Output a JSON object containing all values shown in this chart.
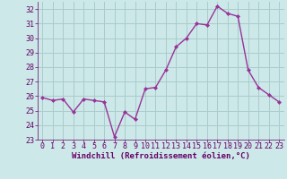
{
  "x": [
    0,
    1,
    2,
    3,
    4,
    5,
    6,
    7,
    8,
    9,
    10,
    11,
    12,
    13,
    14,
    15,
    16,
    17,
    18,
    19,
    20,
    21,
    22,
    23
  ],
  "y": [
    25.9,
    25.7,
    25.8,
    24.9,
    25.8,
    25.7,
    25.6,
    23.2,
    24.9,
    24.4,
    26.5,
    26.6,
    27.8,
    29.4,
    30.0,
    31.0,
    30.9,
    32.2,
    31.7,
    31.5,
    27.8,
    26.6,
    26.1,
    25.6
  ],
  "line_color": "#993399",
  "marker": "D",
  "marker_size": 2.0,
  "bg_color": "#cce8e8",
  "grid_color": "#aacccc",
  "xlabel": "Windchill (Refroidissement éolien,°C)",
  "xlabel_color": "#660066",
  "tick_color": "#660066",
  "ylim": [
    23,
    32.5
  ],
  "xlim": [
    -0.5,
    23.5
  ],
  "yticks": [
    23,
    24,
    25,
    26,
    27,
    28,
    29,
    30,
    31,
    32
  ],
  "xticks": [
    0,
    1,
    2,
    3,
    4,
    5,
    6,
    7,
    8,
    9,
    10,
    11,
    12,
    13,
    14,
    15,
    16,
    17,
    18,
    19,
    20,
    21,
    22,
    23
  ],
  "xtick_labels": [
    "0",
    "1",
    "2",
    "3",
    "4",
    "5",
    "6",
    "7",
    "8",
    "9",
    "10",
    "11",
    "12",
    "13",
    "14",
    "15",
    "16",
    "17",
    "18",
    "19",
    "20",
    "21",
    "22",
    "23"
  ],
  "xlabel_fontsize": 6.5,
  "tick_fontsize": 6.0,
  "linewidth": 1.0
}
